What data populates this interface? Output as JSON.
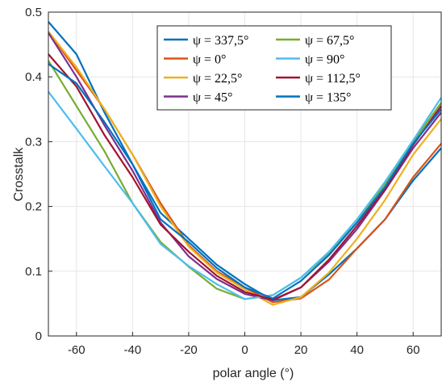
{
  "chart_data": {
    "type": "line",
    "xlabel": "polar angle (°)",
    "ylabel": "Crosstalk",
    "xlim": [
      -70,
      70
    ],
    "ylim": [
      0,
      0.5
    ],
    "xticks": [
      -60,
      -40,
      -20,
      0,
      20,
      40,
      60
    ],
    "yticks": [
      0,
      0.1,
      0.2,
      0.3,
      0.4,
      0.5
    ],
    "ytick_labels": [
      "0",
      "0.1",
      "0.2",
      "0.3",
      "0.4",
      "0.5"
    ],
    "grid": true,
    "legend": {
      "placement": "top-right",
      "columns": 2
    },
    "x": [
      -70,
      -60,
      -50,
      -40,
      -30,
      -20,
      -10,
      0,
      10,
      20,
      30,
      40,
      50,
      60,
      70
    ],
    "series": [
      {
        "name": "ψ = 337,5°",
        "color": "#0072BD",
        "values": [
          0.485,
          0.435,
          0.345,
          0.265,
          0.19,
          0.15,
          0.11,
          0.08,
          0.055,
          0.06,
          0.095,
          0.135,
          0.18,
          0.24,
          0.29
        ]
      },
      {
        "name": "ψ = 0°",
        "color": "#D95319",
        "values": [
          0.47,
          0.41,
          0.35,
          0.28,
          0.205,
          0.14,
          0.1,
          0.075,
          0.052,
          0.058,
          0.087,
          0.135,
          0.18,
          0.245,
          0.297
        ]
      },
      {
        "name": "ψ = 22,5°",
        "color": "#EDB120",
        "values": [
          0.47,
          0.415,
          0.35,
          0.28,
          0.2,
          0.138,
          0.098,
          0.072,
          0.048,
          0.06,
          0.098,
          0.15,
          0.21,
          0.28,
          0.335
        ]
      },
      {
        "name": "ψ = 45°",
        "color": "#7E2F8E",
        "values": [
          0.468,
          0.4,
          0.325,
          0.255,
          0.175,
          0.123,
          0.088,
          0.065,
          0.055,
          0.075,
          0.115,
          0.165,
          0.225,
          0.29,
          0.345
        ]
      },
      {
        "name": "ψ = 67,5°",
        "color": "#77AC30",
        "values": [
          0.425,
          0.355,
          0.285,
          0.205,
          0.145,
          0.107,
          0.073,
          0.057,
          0.063,
          0.09,
          0.128,
          0.175,
          0.235,
          0.3,
          0.36
        ]
      },
      {
        "name": "ψ = 90°",
        "color": "#4DBEEE",
        "values": [
          0.377,
          0.32,
          0.262,
          0.205,
          0.142,
          0.108,
          0.08,
          0.057,
          0.063,
          0.09,
          0.13,
          0.18,
          0.238,
          0.302,
          0.368
        ]
      },
      {
        "name": "ψ = 112,5°",
        "color": "#A2142F",
        "values": [
          0.435,
          0.385,
          0.31,
          0.245,
          0.172,
          0.13,
          0.093,
          0.068,
          0.056,
          0.075,
          0.118,
          0.17,
          0.227,
          0.295,
          0.355
        ]
      },
      {
        "name": "ψ = 135°",
        "color": "#0072BD",
        "values": [
          0.42,
          0.39,
          0.33,
          0.265,
          0.18,
          0.145,
          0.105,
          0.075,
          0.058,
          0.085,
          0.125,
          0.175,
          0.23,
          0.297,
          0.35
        ]
      }
    ]
  }
}
